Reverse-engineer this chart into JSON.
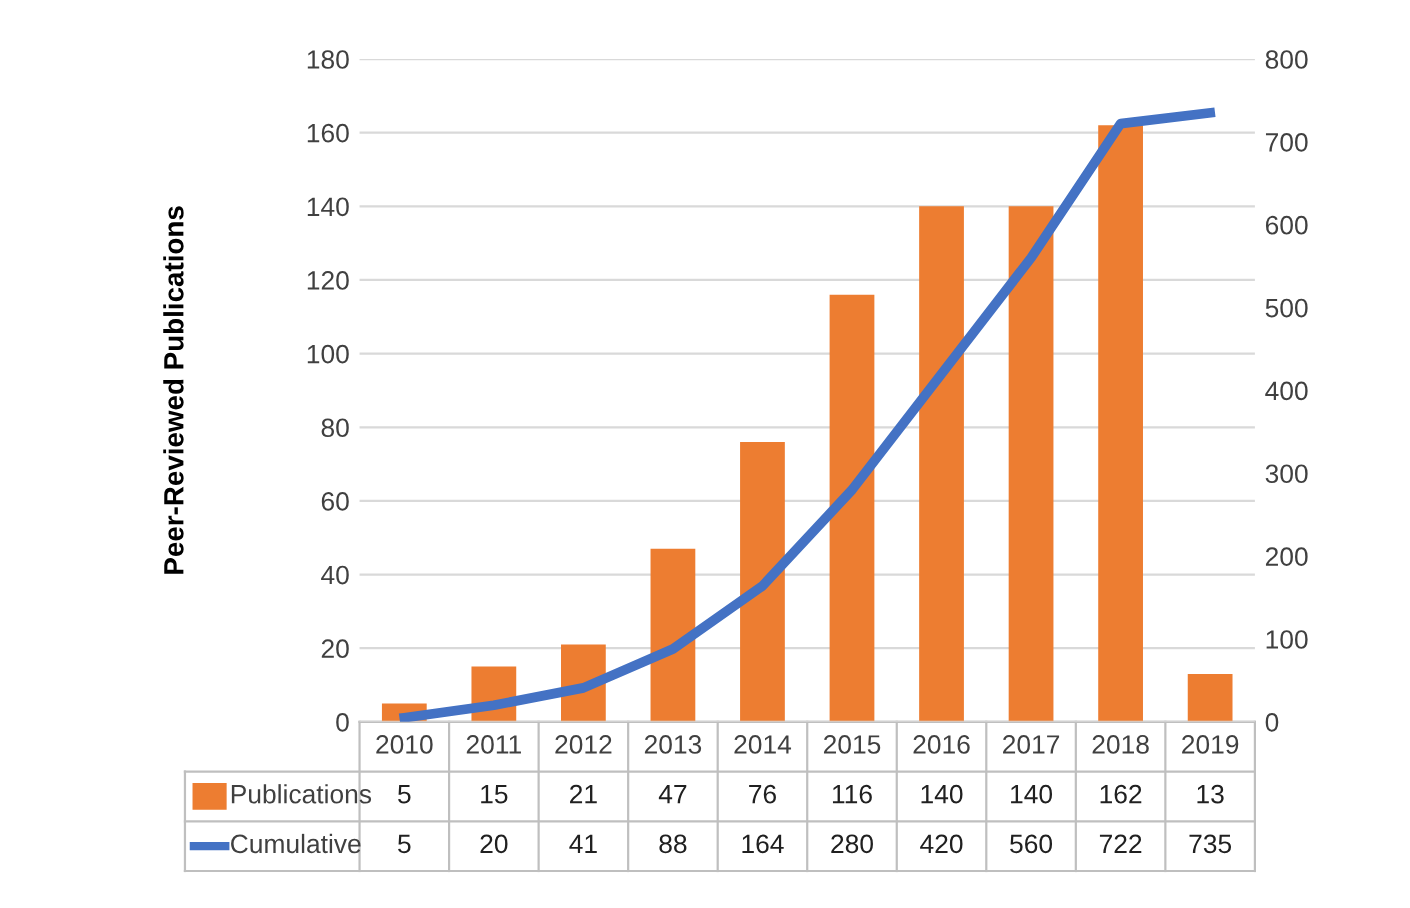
{
  "chart_data": {
    "type": "bar",
    "ylabel": "Peer-Reviewed Publications",
    "categories": [
      "2010",
      "2011",
      "2012",
      "2013",
      "2014",
      "2015",
      "2016",
      "2017",
      "2018",
      "2019"
    ],
    "series": [
      {
        "name": "Publications",
        "color": "#ed7d31",
        "values": [
          5,
          15,
          21,
          47,
          76,
          116,
          140,
          140,
          162,
          13
        ]
      },
      {
        "name": "Cumulative",
        "type": "line",
        "axis": "y2",
        "color": "#4472c4",
        "values": [
          5,
          20,
          41,
          88,
          164,
          280,
          420,
          560,
          722,
          735
        ]
      }
    ],
    "ylim": [
      0,
      180
    ],
    "yticks": [
      0,
      20,
      40,
      60,
      80,
      100,
      120,
      140,
      160,
      180
    ],
    "y2lim": [
      0,
      800
    ],
    "y2ticks": [
      0,
      100,
      200,
      300,
      400,
      500,
      600,
      700,
      800
    ],
    "grid": "y",
    "legend": "bottom left",
    "data_labels": true
  }
}
